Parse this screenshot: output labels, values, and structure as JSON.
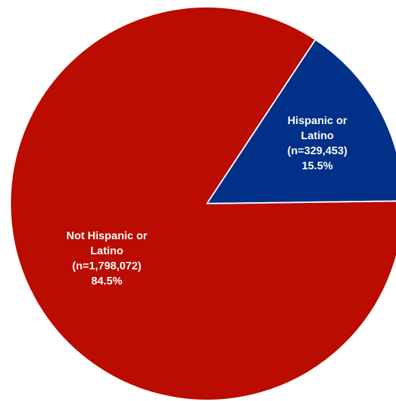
{
  "chart_data": {
    "type": "pie",
    "title": "",
    "slices": [
      {
        "name": "Hispanic or Latino",
        "value": 329453,
        "percent": 15.5,
        "color": "#003087",
        "label_lines": [
          "Hispanic or",
          "Latino",
          "(n=329,453)",
          "15.5%"
        ]
      },
      {
        "name": "Not Hispanic or Latino",
        "value": 1798072,
        "percent": 84.5,
        "color": "#BA0C00",
        "label_lines": [
          "Not Hispanic or",
          "Latino",
          "(n=1,798,072)",
          "84.5%"
        ]
      }
    ],
    "start_angle_deg": 33.5,
    "direction": "clockwise",
    "legend": "none"
  }
}
